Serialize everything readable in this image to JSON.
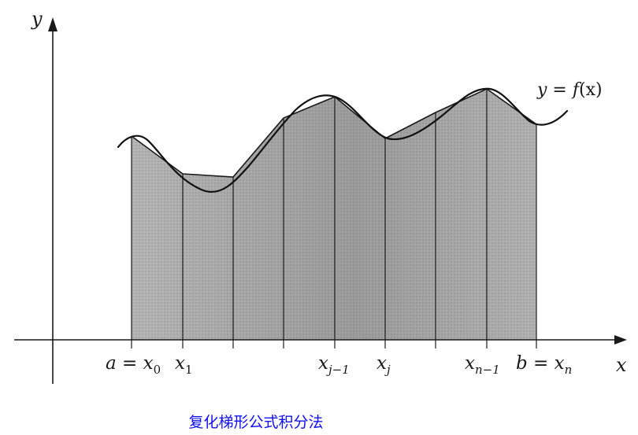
{
  "diagram": {
    "y_axis_label": "y",
    "x_axis_label": "x",
    "curve_label_prefix": "y = ",
    "curve_label_func": "f",
    "curve_label_arg": "(x)",
    "ticks": [
      {
        "lhs": "a = ",
        "main": "x",
        "sub": "0"
      },
      {
        "lhs": "",
        "main": "x",
        "sub": "1"
      },
      {
        "lhs": "",
        "main": "",
        "sub": ""
      },
      {
        "lhs": "",
        "main": "",
        "sub": ""
      },
      {
        "lhs": "",
        "main": "x",
        "sub": "j−1"
      },
      {
        "lhs": "",
        "main": "x",
        "sub": "j"
      },
      {
        "lhs": "",
        "main": "",
        "sub": ""
      },
      {
        "lhs": "",
        "main": "x",
        "sub": "n−1"
      },
      {
        "lhs": "b = ",
        "main": "x",
        "sub": "n"
      }
    ]
  },
  "caption": "复化梯形公式积分法",
  "colors": {
    "fill": "#b3b3b3",
    "ink": "#1a1a1a",
    "caption": "#1010ee"
  }
}
